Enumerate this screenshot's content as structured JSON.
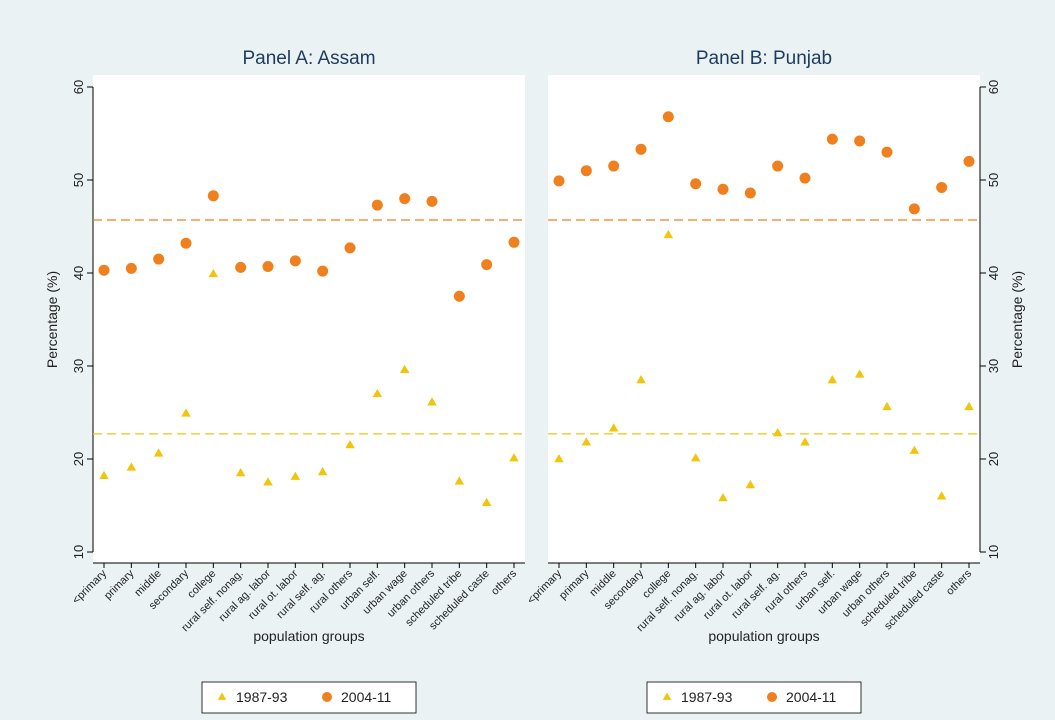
{
  "chart_data": [
    {
      "type": "scatter",
      "title": "Panel A: Assam",
      "xlabel": "population groups",
      "ylabel": "Percentage (%)",
      "y_axis_side": "left",
      "categories": [
        "<primary",
        "primary",
        "middle",
        "secondary",
        "college",
        "rural self. nonag.",
        "rural ag. labor",
        "rural ot. labor",
        "rural self. ag.",
        "rural others",
        "urban self.",
        "urban wage",
        "urban others",
        "scheduled tribe",
        "scheduled caste",
        "others"
      ],
      "series": [
        {
          "name": "1987-93",
          "color": "#f2c40c",
          "marker": "triangle",
          "values": [
            18.2,
            19.1,
            20.6,
            24.9,
            39.9,
            18.5,
            17.5,
            18.1,
            18.6,
            21.5,
            27.0,
            29.6,
            26.1,
            17.6,
            15.3,
            20.1
          ]
        },
        {
          "name": "2004-11",
          "color": "#f07f1e",
          "marker": "circle",
          "values": [
            40.3,
            40.5,
            41.5,
            43.2,
            48.3,
            40.6,
            40.7,
            41.3,
            40.2,
            42.7,
            47.3,
            48.0,
            47.7,
            37.5,
            40.9,
            43.3
          ]
        }
      ],
      "reference_lines": [
        {
          "value": 45.7,
          "color": "#f07f1e"
        },
        {
          "value": 22.7,
          "color": "#f2c40c"
        }
      ],
      "ylim": [
        10,
        60
      ],
      "yticks": [
        10,
        20,
        30,
        40,
        50,
        60
      ]
    },
    {
      "type": "scatter",
      "title": "Panel B: Punjab",
      "xlabel": "population groups",
      "ylabel": "Percentage (%)",
      "y_axis_side": "right",
      "categories": [
        "<primary",
        "primary",
        "middle",
        "secondary",
        "college",
        "rural self. nonag.",
        "rural ag. labor",
        "rural ot. labor",
        "rural self. ag.",
        "rural others",
        "urban self.",
        "urban wage",
        "urban others",
        "scheduled tribe",
        "scheduled caste",
        "others"
      ],
      "series": [
        {
          "name": "1987-93",
          "color": "#f2c40c",
          "marker": "triangle",
          "values": [
            20.0,
            21.8,
            23.3,
            28.5,
            44.1,
            20.1,
            15.8,
            17.2,
            22.8,
            21.8,
            28.5,
            29.1,
            25.6,
            20.9,
            16.0,
            25.6
          ]
        },
        {
          "name": "2004-11",
          "color": "#f07f1e",
          "marker": "circle",
          "values": [
            49.9,
            51.0,
            51.5,
            53.3,
            56.8,
            49.6,
            49.0,
            48.6,
            51.5,
            50.2,
            54.4,
            54.2,
            53.0,
            46.9,
            49.2,
            52.0
          ]
        }
      ],
      "reference_lines": [
        {
          "value": 45.7,
          "color": "#f07f1e"
        },
        {
          "value": 22.7,
          "color": "#f2c40c"
        }
      ],
      "ylim": [
        10,
        60
      ],
      "yticks": [
        10,
        20,
        30,
        40,
        50,
        60
      ]
    }
  ]
}
